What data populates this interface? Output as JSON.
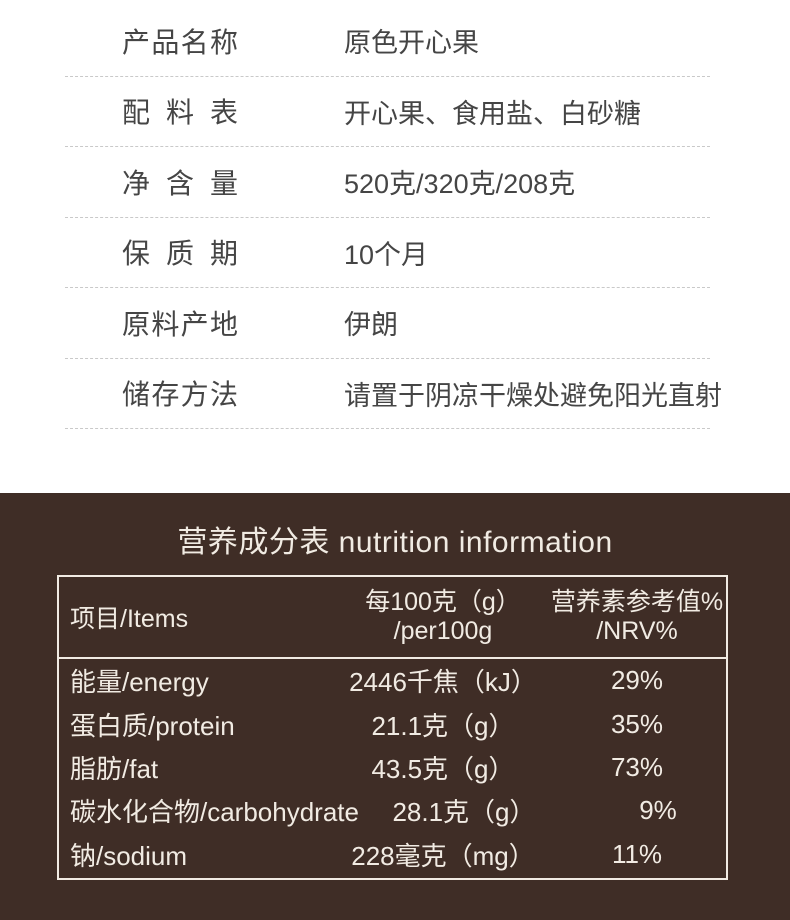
{
  "product_info": {
    "rows": [
      {
        "label": "产品名称",
        "value": "原色开心果"
      },
      {
        "label": "配料表",
        "value": "开心果、食用盐、白砂糖"
      },
      {
        "label": "净含量",
        "value": "520克/320克/208克"
      },
      {
        "label": "保质期",
        "value": "10个月"
      },
      {
        "label": "原料产地",
        "value": "伊朗"
      },
      {
        "label": "储存方法",
        "value": "请置于阴凉干燥处避免阳光直射"
      }
    ]
  },
  "nutrition": {
    "title": "营养成分表 nutrition information",
    "header": {
      "items": "项目/Items",
      "per100g_line1": "每100克（g）",
      "per100g_line2": "/per100g",
      "nrv_line1": "营养素参考值%",
      "nrv_line2": "/NRV%"
    },
    "rows": [
      {
        "item": "能量/energy",
        "per100g": "2446千焦（kJ）",
        "nrv": "29%"
      },
      {
        "item": "蛋白质/protein",
        "per100g": "21.1克（g）",
        "nrv": "35%"
      },
      {
        "item": "脂肪/fat",
        "per100g": "43.5克（g）",
        "nrv": "73%"
      },
      {
        "item": "碳水化合物/carbohydrate",
        "per100g": "28.1克（g）",
        "nrv": "9%"
      },
      {
        "item": "钠/sodium",
        "per100g": "228毫克（mg）",
        "nrv": "11%"
      }
    ]
  },
  "colors": {
    "nutrition_background": "#3f2d26",
    "nutrition_text": "#f1ebe3",
    "spec_text": "#454545",
    "divider_dash": "#c9c9c9",
    "page_background": "#ffffff"
  }
}
